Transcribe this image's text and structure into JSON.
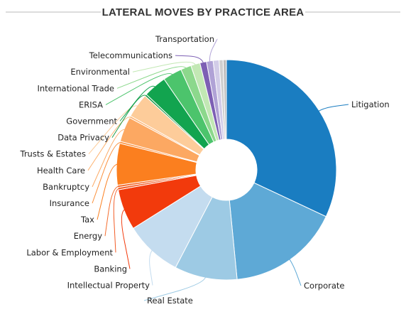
{
  "chart_data": {
    "type": "pie",
    "title": "LATERAL MOVES BY PRACTICE AREA",
    "donut": true,
    "slices": [
      {
        "label": "Litigation",
        "value": 33.0,
        "color": "#1a7dc1"
      },
      {
        "label": "Corporate",
        "value": 17.0,
        "color": "#5ea9d6"
      },
      {
        "label": "Real Estate",
        "value": 9.5,
        "color": "#9dcae4"
      },
      {
        "label": "Intellectual Property",
        "value": 8.7,
        "color": "#c4dcef"
      },
      {
        "label": "Banking",
        "value": 6.2,
        "color": "#f23a0c"
      },
      {
        "label": "Labor & Employment",
        "value": 0.35,
        "color": "#f25c26"
      },
      {
        "label": "Energy",
        "value": 0.35,
        "color": "#f46d2e"
      },
      {
        "label": "Tax",
        "value": 6.3,
        "color": "#fb7f1f"
      },
      {
        "label": "Insurance",
        "value": 0.3,
        "color": "#fb8f3a"
      },
      {
        "label": "Bankruptcy",
        "value": 3.8,
        "color": "#fca862"
      },
      {
        "label": "Health Care",
        "value": 0.3,
        "color": "#fdb26f"
      },
      {
        "label": "Trusts & Estates",
        "value": 3.7,
        "color": "#fdcc9a"
      },
      {
        "label": "Data Privacy",
        "value": 0.3,
        "color": "#1e9c4a"
      },
      {
        "label": "Government",
        "value": 3.5,
        "color": "#12a44f"
      },
      {
        "label": "ERISA",
        "value": 2.9,
        "color": "#4cc46c"
      },
      {
        "label": "International Trade",
        "value": 1.6,
        "color": "#8cd88c"
      },
      {
        "label": "Environmental",
        "value": 1.4,
        "color": "#c2e8b4"
      },
      {
        "label": "Telecommunications",
        "value": 1.0,
        "color": "#7d5fb4"
      },
      {
        "label": "Transportation",
        "value": 1.0,
        "color": "#b0a2d6"
      },
      {
        "label": "",
        "value": 0.9,
        "color": "#d2cce8"
      },
      {
        "label": "",
        "value": 0.6,
        "color": "#cfcfcf"
      },
      {
        "label": "",
        "value": 0.5,
        "color": "#bdbdbd"
      }
    ],
    "legend": "none"
  }
}
